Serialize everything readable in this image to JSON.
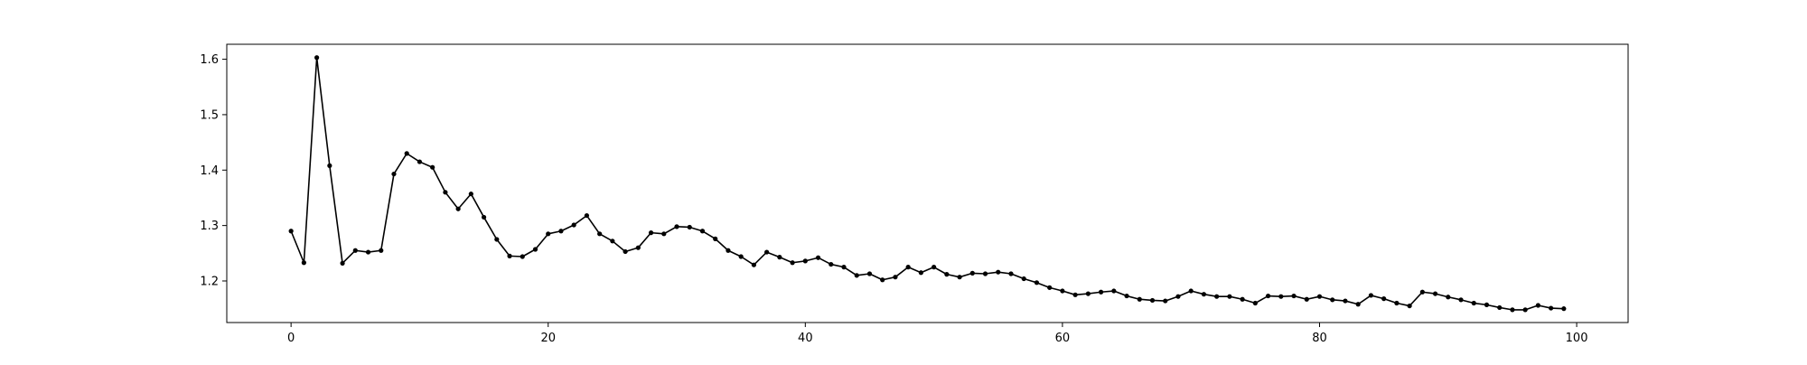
{
  "chart_data": {
    "type": "line",
    "title": "",
    "xlabel": "",
    "ylabel": "",
    "xlim": [
      -5,
      104
    ],
    "ylim": [
      1.125,
      1.627
    ],
    "grid": false,
    "legend": "none",
    "x_ticks": [
      0,
      20,
      40,
      60,
      80,
      100
    ],
    "x_tick_labels": [
      "0",
      "20",
      "40",
      "60",
      "80",
      "100"
    ],
    "y_ticks": [
      1.2,
      1.3,
      1.4,
      1.5,
      1.6
    ],
    "y_tick_labels": [
      "1.2",
      "1.3",
      "1.4",
      "1.5",
      "1.6"
    ],
    "colors": {
      "line": "#000000",
      "marker": "#000000",
      "axes": "#000000"
    },
    "marker": "dot",
    "series": [
      {
        "x": [
          0,
          1,
          2,
          3,
          4,
          5,
          6,
          7,
          8,
          9,
          10,
          11,
          12,
          13,
          14,
          15,
          16,
          17,
          18,
          19,
          20,
          21,
          22,
          23,
          24,
          25,
          26,
          27,
          28,
          29,
          30,
          31,
          32,
          33,
          34,
          35,
          36,
          37,
          38,
          39,
          40,
          41,
          42,
          43,
          44,
          45,
          46,
          47,
          48,
          49,
          50,
          51,
          52,
          53,
          54,
          55,
          56,
          57,
          58,
          59,
          60,
          61,
          62,
          63,
          64,
          65,
          66,
          67,
          68,
          69,
          70,
          71,
          72,
          73,
          74,
          75,
          76,
          77,
          78,
          79,
          80,
          81,
          82,
          83,
          84,
          85,
          86,
          87,
          88,
          89,
          90,
          91,
          92,
          93,
          94,
          95,
          96,
          97,
          98,
          99
        ],
        "values": [
          1.29,
          1.233,
          1.603,
          1.408,
          1.232,
          1.255,
          1.252,
          1.255,
          1.393,
          1.43,
          1.415,
          1.405,
          1.36,
          1.33,
          1.357,
          1.315,
          1.275,
          1.245,
          1.244,
          1.257,
          1.285,
          1.29,
          1.301,
          1.318,
          1.285,
          1.272,
          1.253,
          1.26,
          1.287,
          1.285,
          1.298,
          1.297,
          1.29,
          1.276,
          1.255,
          1.244,
          1.229,
          1.252,
          1.243,
          1.233,
          1.236,
          1.242,
          1.23,
          1.225,
          1.21,
          1.213,
          1.202,
          1.207,
          1.225,
          1.215,
          1.225,
          1.212,
          1.207,
          1.214,
          1.213,
          1.216,
          1.213,
          1.204,
          1.197,
          1.188,
          1.182,
          1.175,
          1.177,
          1.18,
          1.182,
          1.173,
          1.167,
          1.165,
          1.164,
          1.172,
          1.182,
          1.176,
          1.172,
          1.172,
          1.167,
          1.16,
          1.173,
          1.172,
          1.173,
          1.167,
          1.172,
          1.166,
          1.164,
          1.158,
          1.174,
          1.168,
          1.16,
          1.155,
          1.18,
          1.177,
          1.171,
          1.166,
          1.16,
          1.157,
          1.152,
          1.148,
          1.148,
          1.156,
          1.151,
          1.15
        ]
      }
    ]
  }
}
